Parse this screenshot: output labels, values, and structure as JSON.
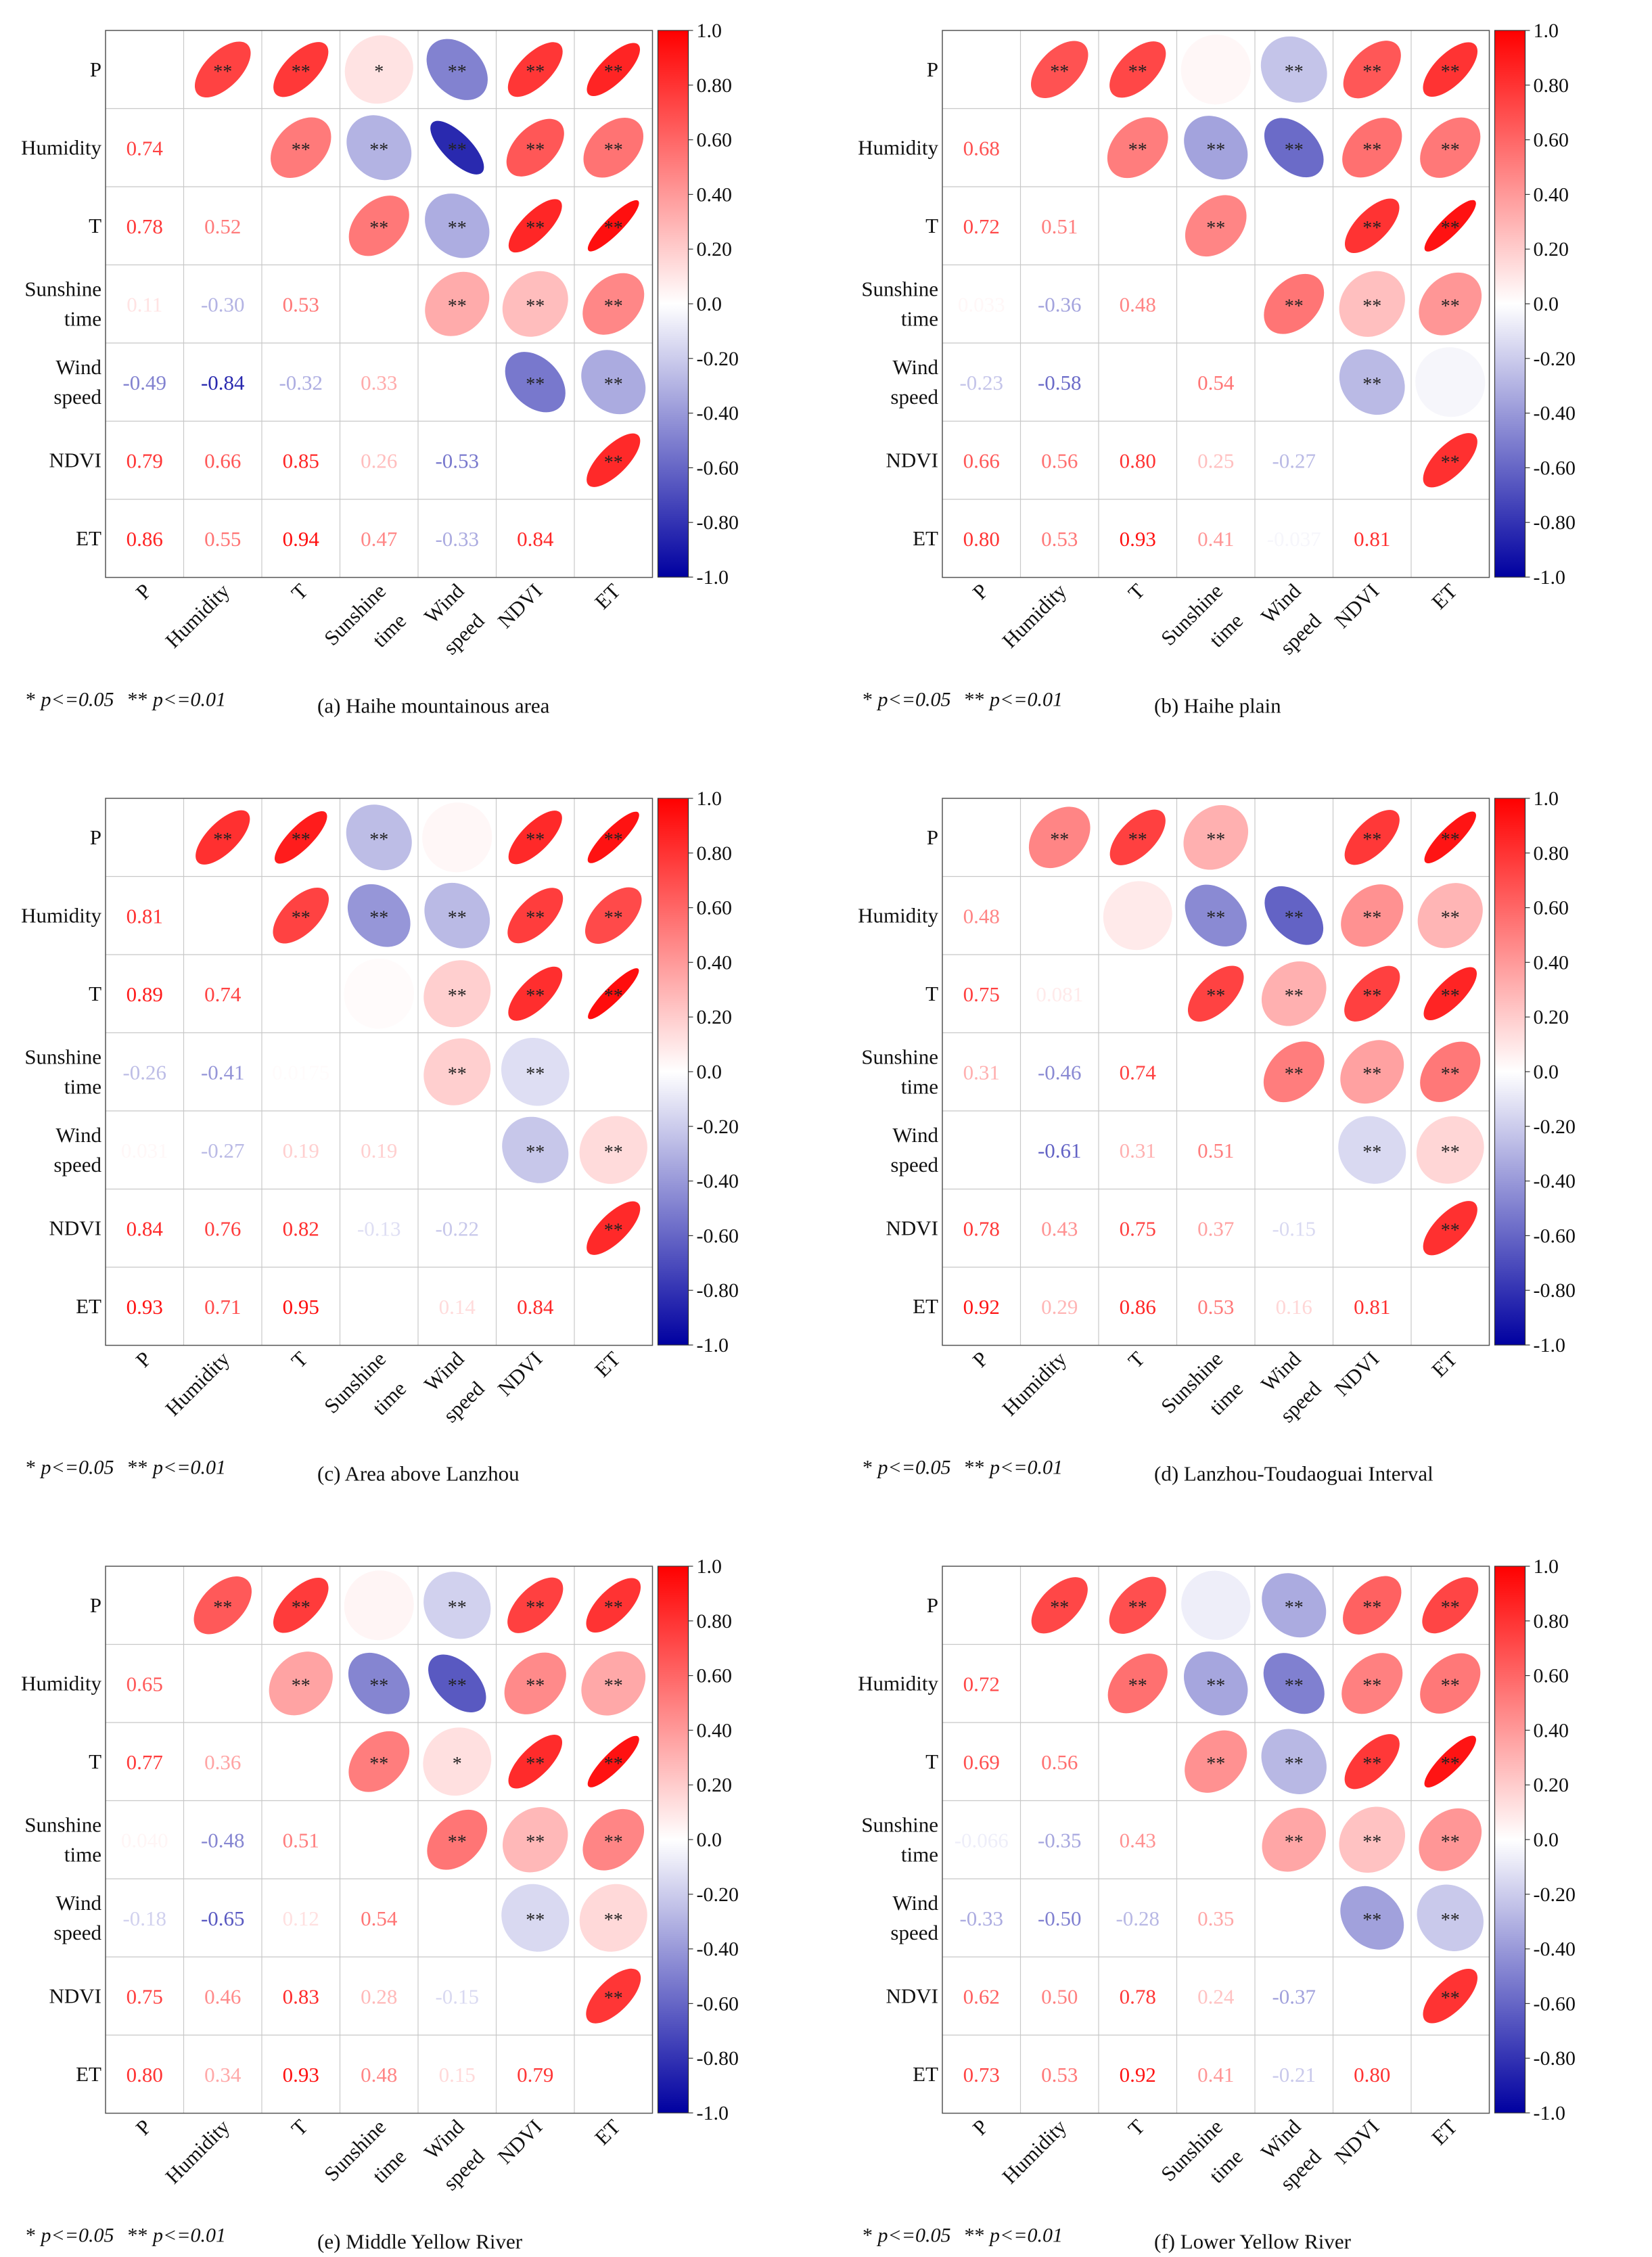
{
  "figure": {
    "shared_variables": [
      "P",
      "Humidity",
      "T",
      "Sunshine time",
      "Wind speed",
      "NDVI",
      "ET"
    ],
    "row_labels": [
      [
        "P"
      ],
      [
        "Humidity"
      ],
      [
        "T"
      ],
      [
        "Sunshine",
        "time"
      ],
      [
        "Wind",
        "speed"
      ],
      [
        "NDVI"
      ],
      [
        "ET"
      ]
    ],
    "col_labels": [
      [
        "P"
      ],
      [
        "Humidity"
      ],
      [
        "T"
      ],
      [
        "Sunshine",
        "time"
      ],
      [
        "Wind",
        "speed"
      ],
      [
        "NDVI"
      ],
      [
        "ET"
      ]
    ],
    "colorbar_ticks": [
      "1.0",
      "0.80",
      "0.60",
      "0.40",
      "0.20",
      "0.0",
      "-0.20",
      "-0.40",
      "-0.60",
      "-0.80",
      "-1.0"
    ],
    "colorbar_range": [
      -1.0,
      1.0
    ],
    "colors": {
      "positive": "#ff0000",
      "neutral": "#ffffff",
      "negative": "#0000a0",
      "grid": "#c8c8c8"
    },
    "significance_note": {
      "one_star": "*",
      "one_star_text": "p<=0.05",
      "two_star": "**",
      "two_star_text": "p<=0.01"
    }
  },
  "chart_data": [
    {
      "type": "heatmap",
      "title": "(a) Haihe mountainous area",
      "variables": [
        "P",
        "Humidity",
        "T",
        "Sunshine time",
        "Wind speed",
        "NDVI",
        "ET"
      ],
      "lower_text": [
        [
          "",
          "",
          "",
          "",
          "",
          "",
          ""
        ],
        [
          "0.74",
          "",
          "",
          "",
          "",
          "",
          ""
        ],
        [
          "0.78",
          "0.52",
          "",
          "",
          "",
          "",
          ""
        ],
        [
          "0.11",
          "-0.30",
          "0.53",
          "",
          "",
          "",
          ""
        ],
        [
          "-0.49",
          "-0.84",
          "-0.32",
          "0.33",
          "",
          "",
          ""
        ],
        [
          "0.79",
          "0.66",
          "0.85",
          "0.26",
          "-0.53",
          "",
          ""
        ],
        [
          "0.86",
          "0.55",
          "0.94",
          "0.47",
          "-0.33",
          "0.84",
          ""
        ]
      ],
      "values": [
        [
          1,
          0.74,
          0.78,
          0.11,
          -0.49,
          0.79,
          0.86
        ],
        [
          0.74,
          1,
          0.52,
          -0.3,
          -0.84,
          0.66,
          0.55
        ],
        [
          0.78,
          0.52,
          1,
          0.53,
          -0.32,
          0.85,
          0.94
        ],
        [
          0.11,
          -0.3,
          0.53,
          1,
          0.33,
          0.26,
          0.47
        ],
        [
          -0.49,
          -0.84,
          -0.32,
          0.33,
          1,
          -0.53,
          -0.33
        ],
        [
          0.79,
          0.66,
          0.85,
          0.26,
          -0.53,
          1,
          0.84
        ],
        [
          0.86,
          0.55,
          0.94,
          0.47,
          -0.33,
          0.84,
          1
        ]
      ],
      "significance": [
        [
          "",
          "**",
          "**",
          "*",
          "**",
          "**",
          "**"
        ],
        [
          "",
          "",
          "**",
          "**",
          "**",
          "**",
          "**"
        ],
        [
          "",
          "",
          "",
          "**",
          "**",
          "**",
          "**"
        ],
        [
          "",
          "",
          "",
          "",
          "**",
          "**",
          "**"
        ],
        [
          "",
          "",
          "",
          "",
          "",
          "**",
          "**"
        ],
        [
          "",
          "",
          "",
          "",
          "",
          "",
          "**"
        ],
        [
          "",
          "",
          "",
          "",
          "",
          "",
          ""
        ]
      ],
      "vmin": -1.0,
      "vmax": 1.0
    },
    {
      "type": "heatmap",
      "title": "(b) Haihe plain",
      "variables": [
        "P",
        "Humidity",
        "T",
        "Sunshine time",
        "Wind speed",
        "NDVI",
        "ET"
      ],
      "lower_text": [
        [
          "",
          "",
          "",
          "",
          "",
          "",
          ""
        ],
        [
          "0.68",
          "",
          "",
          "",
          "",
          "",
          ""
        ],
        [
          "0.72",
          "0.51",
          "",
          "",
          "",
          "",
          ""
        ],
        [
          "0.033",
          "-0.36",
          "0.48",
          "",
          "",
          "",
          ""
        ],
        [
          "-0.23",
          "-0.58",
          "",
          "0.54",
          "",
          "",
          ""
        ],
        [
          "0.66",
          "0.56",
          "0.80",
          "0.25",
          "-0.27",
          "",
          ""
        ],
        [
          "0.80",
          "0.53",
          "0.93",
          "0.41",
          "-0.037",
          "0.81",
          ""
        ]
      ],
      "values": [
        [
          1,
          0.68,
          0.72,
          0.033,
          -0.23,
          0.66,
          0.8
        ],
        [
          0.68,
          1,
          0.51,
          -0.36,
          -0.58,
          0.56,
          0.53
        ],
        [
          0.72,
          0.51,
          1,
          0.48,
          0.0,
          0.8,
          0.93
        ],
        [
          0.033,
          -0.36,
          0.48,
          1,
          0.54,
          0.25,
          0.41
        ],
        [
          -0.23,
          -0.58,
          0.0,
          0.54,
          1,
          -0.27,
          -0.037
        ],
        [
          0.66,
          0.56,
          0.8,
          0.25,
          -0.27,
          1,
          0.81
        ],
        [
          0.8,
          0.53,
          0.93,
          0.41,
          -0.037,
          0.81,
          1
        ]
      ],
      "significance": [
        [
          "",
          "**",
          "**",
          "",
          "**",
          "**",
          "**"
        ],
        [
          "",
          "",
          "**",
          "**",
          "**",
          "**",
          "**"
        ],
        [
          "",
          "",
          "",
          "**",
          "",
          "**",
          "**"
        ],
        [
          "",
          "",
          "",
          "",
          "**",
          "**",
          "**"
        ],
        [
          "",
          "",
          "",
          "",
          "",
          "**",
          ""
        ],
        [
          "",
          "",
          "",
          "",
          "",
          "",
          "**"
        ],
        [
          "",
          "",
          "",
          "",
          "",
          "",
          ""
        ]
      ],
      "vmin": -1.0,
      "vmax": 1.0
    },
    {
      "type": "heatmap",
      "title": "(c) Area above Lanzhou",
      "variables": [
        "P",
        "Humidity",
        "T",
        "Sunshine time",
        "Wind speed",
        "NDVI",
        "ET"
      ],
      "lower_text": [
        [
          "",
          "",
          "",
          "",
          "",
          "",
          ""
        ],
        [
          "0.81",
          "",
          "",
          "",
          "",
          "",
          ""
        ],
        [
          "0.89",
          "0.74",
          "",
          "",
          "",
          "",
          ""
        ],
        [
          "-0.26",
          "-0.41",
          "0.0175",
          "",
          "",
          "",
          ""
        ],
        [
          "0.031",
          "-0.27",
          "0.19",
          "0.19",
          "",
          "",
          ""
        ],
        [
          "0.84",
          "0.76",
          "0.82",
          "-0.13",
          "-0.22",
          "",
          ""
        ],
        [
          "0.93",
          "0.71",
          "0.95",
          "",
          "0.14",
          "0.84",
          ""
        ]
      ],
      "values": [
        [
          1,
          0.81,
          0.89,
          -0.26,
          0.031,
          0.84,
          0.93
        ],
        [
          0.81,
          1,
          0.74,
          -0.41,
          -0.27,
          0.76,
          0.71
        ],
        [
          0.89,
          0.74,
          1,
          0.0175,
          0.19,
          0.82,
          0.95
        ],
        [
          -0.26,
          -0.41,
          0.0175,
          1,
          0.19,
          -0.13,
          0.0
        ],
        [
          0.031,
          -0.27,
          0.19,
          0.19,
          1,
          -0.22,
          0.14
        ],
        [
          0.84,
          0.76,
          0.82,
          -0.13,
          -0.22,
          1,
          0.84
        ],
        [
          0.93,
          0.71,
          0.95,
          0.0,
          0.14,
          0.84,
          1
        ]
      ],
      "significance": [
        [
          "",
          "**",
          "**",
          "**",
          "",
          "**",
          "**"
        ],
        [
          "",
          "",
          "**",
          "**",
          "**",
          "**",
          "**"
        ],
        [
          "",
          "",
          "",
          "",
          "**",
          "**",
          "**"
        ],
        [
          "",
          "",
          "",
          "",
          "**",
          "**",
          ""
        ],
        [
          "",
          "",
          "",
          "",
          "",
          "**",
          "**"
        ],
        [
          "",
          "",
          "",
          "",
          "",
          "",
          "**"
        ],
        [
          "",
          "",
          "",
          "",
          "",
          "",
          ""
        ]
      ],
      "vmin": -1.0,
      "vmax": 1.0
    },
    {
      "type": "heatmap",
      "title": "(d) Lanzhou-Toudaoguai Interval",
      "variables": [
        "P",
        "Humidity",
        "T",
        "Sunshine time",
        "Wind speed",
        "NDVI",
        "ET"
      ],
      "lower_text": [
        [
          "",
          "",
          "",
          "",
          "",
          "",
          ""
        ],
        [
          "0.48",
          "",
          "",
          "",
          "",
          "",
          ""
        ],
        [
          "0.75",
          "0.081",
          "",
          "",
          "",
          "",
          ""
        ],
        [
          "0.31",
          "-0.46",
          "0.74",
          "",
          "",
          "",
          ""
        ],
        [
          "",
          "-0.61",
          "0.31",
          "0.51",
          "",
          "",
          ""
        ],
        [
          "0.78",
          "0.43",
          "0.75",
          "0.37",
          "-0.15",
          "",
          ""
        ],
        [
          "0.92",
          "0.29",
          "0.86",
          "0.53",
          "0.16",
          "0.81",
          ""
        ]
      ],
      "values": [
        [
          1,
          0.48,
          0.75,
          0.31,
          0.0,
          0.78,
          0.92
        ],
        [
          0.48,
          1,
          0.081,
          -0.46,
          -0.61,
          0.43,
          0.29
        ],
        [
          0.75,
          0.081,
          1,
          0.74,
          0.31,
          0.75,
          0.86
        ],
        [
          0.31,
          -0.46,
          0.74,
          1,
          0.51,
          0.37,
          0.53
        ],
        [
          0.0,
          -0.61,
          0.31,
          0.51,
          1,
          -0.15,
          0.16
        ],
        [
          0.78,
          0.43,
          0.75,
          0.37,
          -0.15,
          1,
          0.81
        ],
        [
          0.92,
          0.29,
          0.86,
          0.53,
          0.16,
          0.81,
          1
        ]
      ],
      "significance": [
        [
          "",
          "**",
          "**",
          "**",
          "",
          "**",
          "**"
        ],
        [
          "",
          "",
          "",
          "**",
          "**",
          "**",
          "**"
        ],
        [
          "",
          "",
          "",
          "**",
          "**",
          "**",
          "**"
        ],
        [
          "",
          "",
          "",
          "",
          "**",
          "**",
          "**"
        ],
        [
          "",
          "",
          "",
          "",
          "",
          "**",
          "**"
        ],
        [
          "",
          "",
          "",
          "",
          "",
          "",
          "**"
        ],
        [
          "",
          "",
          "",
          "",
          "",
          "",
          ""
        ]
      ],
      "vmin": -1.0,
      "vmax": 1.0
    },
    {
      "type": "heatmap",
      "title": "(e) Middle Yellow River",
      "variables": [
        "P",
        "Humidity",
        "T",
        "Sunshine time",
        "Wind speed",
        "NDVI",
        "ET"
      ],
      "lower_text": [
        [
          "",
          "",
          "",
          "",
          "",
          "",
          ""
        ],
        [
          "0.65",
          "",
          "",
          "",
          "",
          "",
          ""
        ],
        [
          "0.77",
          "0.36",
          "",
          "",
          "",
          "",
          ""
        ],
        [
          "0.040",
          "-0.48",
          "0.51",
          "",
          "",
          "",
          ""
        ],
        [
          "-0.18",
          "-0.65",
          "0.12",
          "0.54",
          "",
          "",
          ""
        ],
        [
          "0.75",
          "0.46",
          "0.83",
          "0.28",
          "-0.15",
          "",
          ""
        ],
        [
          "0.80",
          "0.34",
          "0.93",
          "0.48",
          "0.15",
          "0.79",
          ""
        ]
      ],
      "values": [
        [
          1,
          0.65,
          0.77,
          0.04,
          -0.18,
          0.75,
          0.8
        ],
        [
          0.65,
          1,
          0.36,
          -0.48,
          -0.65,
          0.46,
          0.34
        ],
        [
          0.77,
          0.36,
          1,
          0.51,
          0.12,
          0.83,
          0.93
        ],
        [
          0.04,
          -0.48,
          0.51,
          1,
          0.54,
          0.28,
          0.48
        ],
        [
          -0.18,
          -0.65,
          0.12,
          0.54,
          1,
          -0.15,
          0.15
        ],
        [
          0.75,
          0.46,
          0.83,
          0.28,
          -0.15,
          1,
          0.79
        ],
        [
          0.8,
          0.34,
          0.93,
          0.48,
          0.15,
          0.79,
          1
        ]
      ],
      "significance": [
        [
          "",
          "**",
          "**",
          "",
          "**",
          "**",
          "**"
        ],
        [
          "",
          "",
          "**",
          "**",
          "**",
          "**",
          "**"
        ],
        [
          "",
          "",
          "",
          "**",
          "*",
          "**",
          "**"
        ],
        [
          "",
          "",
          "",
          "",
          "**",
          "**",
          "**"
        ],
        [
          "",
          "",
          "",
          "",
          "",
          "**",
          "**"
        ],
        [
          "",
          "",
          "",
          "",
          "",
          "",
          "**"
        ],
        [
          "",
          "",
          "",
          "",
          "",
          "",
          ""
        ]
      ],
      "vmin": -1.0,
      "vmax": 1.0
    },
    {
      "type": "heatmap",
      "title": "(f) Lower Yellow River",
      "variables": [
        "P",
        "Humidity",
        "T",
        "Sunshine time",
        "Wind speed",
        "NDVI",
        "ET"
      ],
      "lower_text": [
        [
          "",
          "",
          "",
          "",
          "",
          "",
          ""
        ],
        [
          "0.72",
          "",
          "",
          "",
          "",
          "",
          ""
        ],
        [
          "0.69",
          "0.56",
          "",
          "",
          "",
          "",
          ""
        ],
        [
          "-0.066",
          "-0.35",
          "0.43",
          "",
          "",
          "",
          ""
        ],
        [
          "-0.33",
          "-0.50",
          "-0.28",
          "0.35",
          "",
          "",
          ""
        ],
        [
          "0.62",
          "0.50",
          "0.78",
          "0.24",
          "-0.37",
          "",
          ""
        ],
        [
          "0.73",
          "0.53",
          "0.92",
          "0.41",
          "-0.21",
          "0.80",
          ""
        ]
      ],
      "values": [
        [
          1,
          0.72,
          0.69,
          -0.066,
          -0.33,
          0.62,
          0.73
        ],
        [
          0.72,
          1,
          0.56,
          -0.35,
          -0.5,
          0.5,
          0.53
        ],
        [
          0.69,
          0.56,
          1,
          0.43,
          -0.28,
          0.78,
          0.92
        ],
        [
          -0.066,
          -0.35,
          0.43,
          1,
          0.35,
          0.24,
          0.41
        ],
        [
          -0.33,
          -0.5,
          -0.28,
          0.35,
          1,
          -0.37,
          -0.21
        ],
        [
          0.62,
          0.5,
          0.78,
          0.24,
          -0.37,
          1,
          0.8
        ],
        [
          0.73,
          0.53,
          0.92,
          0.41,
          -0.21,
          0.8,
          1
        ]
      ],
      "significance": [
        [
          "",
          "**",
          "**",
          "",
          "**",
          "**",
          "**"
        ],
        [
          "",
          "",
          "**",
          "**",
          "**",
          "**",
          "**"
        ],
        [
          "",
          "",
          "",
          "**",
          "**",
          "**",
          "**"
        ],
        [
          "",
          "",
          "",
          "",
          "**",
          "**",
          "**"
        ],
        [
          "",
          "",
          "",
          "",
          "",
          "**",
          "**"
        ],
        [
          "",
          "",
          "",
          "",
          "",
          "",
          "**"
        ],
        [
          "",
          "",
          "",
          "",
          "",
          "",
          ""
        ]
      ],
      "vmin": -1.0,
      "vmax": 1.0
    }
  ]
}
